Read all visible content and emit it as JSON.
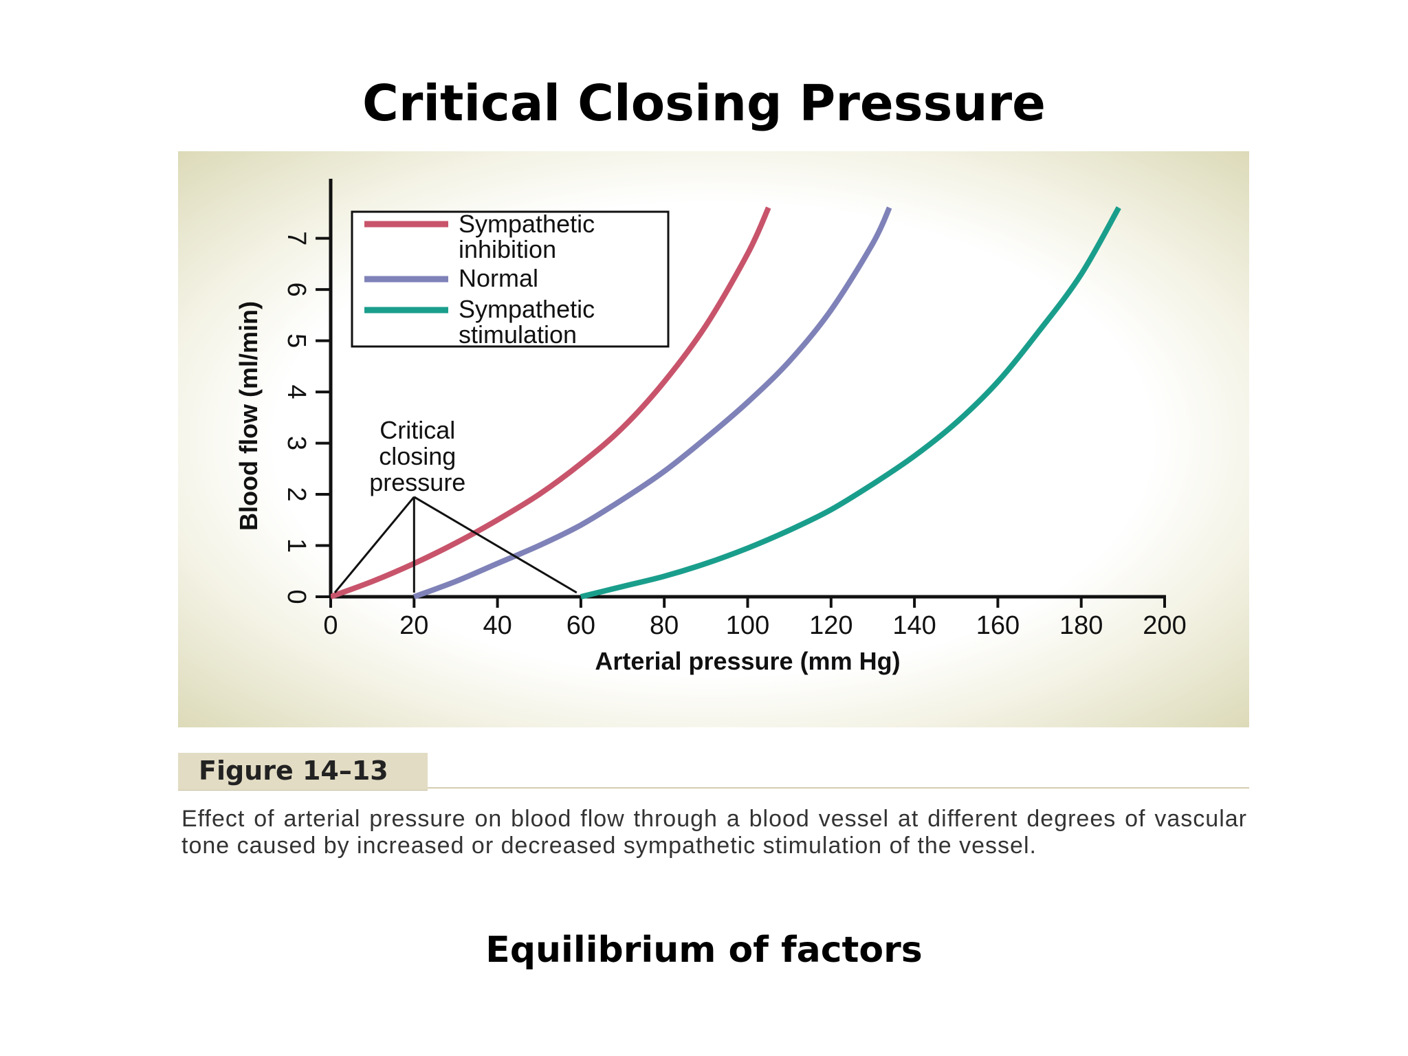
{
  "slide": {
    "title": "Critical Closing Pressure",
    "subtitle": "Equilibrium of factors"
  },
  "caption": {
    "label": "Figure 14–13",
    "text": "Effect of arterial pressure on blood flow through a blood vessel at different degrees of vascular tone caused by increased or decreased sympathetic stimulation of the vessel."
  },
  "chart_data": {
    "type": "line",
    "title": "",
    "xlabel": "Arterial pressure (mm Hg)",
    "ylabel": "Blood flow (ml/min)",
    "xlim": [
      0,
      200
    ],
    "ylim": [
      0,
      7.6
    ],
    "x_ticks": [
      0,
      20,
      40,
      60,
      80,
      100,
      120,
      140,
      160,
      180,
      200
    ],
    "y_ticks": [
      0,
      1,
      2,
      3,
      4,
      5,
      6,
      7
    ],
    "grid": false,
    "legend_position": "top-left",
    "series": [
      {
        "name": "Sympathetic inhibition",
        "color": "#c8546b",
        "x": [
          0,
          10,
          20,
          30,
          40,
          50,
          60,
          70,
          80,
          90,
          100,
          105
        ],
        "y": [
          0,
          0.3,
          0.65,
          1.05,
          1.5,
          2.0,
          2.6,
          3.3,
          4.2,
          5.3,
          6.7,
          7.6
        ]
      },
      {
        "name": "Normal",
        "color": "#7f82b8",
        "x": [
          20,
          30,
          40,
          50,
          60,
          70,
          80,
          90,
          100,
          110,
          120,
          130,
          134
        ],
        "y": [
          0,
          0.3,
          0.65,
          1.0,
          1.4,
          1.9,
          2.45,
          3.1,
          3.8,
          4.6,
          5.6,
          6.9,
          7.6
        ]
      },
      {
        "name": "Sympathetic stimulation",
        "color": "#1a9e8c",
        "x": [
          60,
          70,
          80,
          90,
          100,
          110,
          120,
          130,
          140,
          150,
          160,
          170,
          180,
          189
        ],
        "y": [
          0,
          0.2,
          0.4,
          0.65,
          0.95,
          1.3,
          1.7,
          2.2,
          2.75,
          3.4,
          4.2,
          5.2,
          6.3,
          7.6
        ]
      }
    ],
    "annotations": [
      {
        "text": [
          "Critical",
          "closing",
          "pressure"
        ],
        "apex": [
          20,
          1.95
        ],
        "points": [
          [
            0,
            0
          ],
          [
            20,
            0
          ],
          [
            59,
            0
          ]
        ]
      }
    ]
  }
}
